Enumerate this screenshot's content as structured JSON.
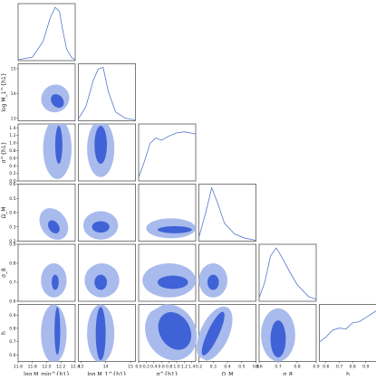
{
  "chart_data": {
    "type": "corner",
    "params": [
      {
        "key": "logMmin",
        "label": "log M_min^{h1}",
        "range": [
          11.6,
          12.4
        ],
        "ticks": [
          "11.6",
          "11.8",
          "12.0",
          "12.2",
          "12.4"
        ]
      },
      {
        "key": "logM1",
        "label": "log M_1^{h1}",
        "range": [
          12.9,
          15.2
        ],
        "ticks": [
          "13",
          "14",
          "15"
        ]
      },
      {
        "key": "sigma",
        "label": "σ^{h1}",
        "range": [
          0.0,
          1.5
        ],
        "ticks": [
          "0.0",
          "0.2",
          "0.4",
          "0.6",
          "0.8",
          "1.0",
          "1.2",
          "1.4"
        ]
      },
      {
        "key": "Om",
        "label": "Ω_M",
        "range": [
          0.2,
          0.6
        ],
        "ticks": [
          "0.2",
          "0.3",
          "0.4",
          "0.5",
          "0.6"
        ]
      },
      {
        "key": "s8",
        "label": "σ_8",
        "range": [
          0.6,
          0.9
        ],
        "ticks": [
          "0.6",
          "0.7",
          "0.8",
          "0.9"
        ]
      },
      {
        "key": "h",
        "label": "h",
        "range": [
          0.55,
          0.98
        ],
        "ticks": [
          "0.6",
          "0.7",
          "0.8",
          "0.9"
        ]
      }
    ],
    "diagonal_1d": [
      {
        "x": [
          11.6,
          11.8,
          11.95,
          12.05,
          12.12,
          12.18,
          12.22,
          12.28,
          12.35,
          12.4
        ],
        "y": [
          0.0,
          0.05,
          0.35,
          0.8,
          1.0,
          0.92,
          0.6,
          0.2,
          0.04,
          0.0
        ]
      },
      {
        "x": [
          12.9,
          13.2,
          13.5,
          13.7,
          13.9,
          14.1,
          14.4,
          14.8,
          15.2
        ],
        "y": [
          0.02,
          0.25,
          0.75,
          0.97,
          1.0,
          0.55,
          0.15,
          0.03,
          0.0
        ]
      },
      {
        "x": [
          0.0,
          0.15,
          0.3,
          0.45,
          0.6,
          0.8,
          1.0,
          1.2,
          1.5
        ],
        "y": [
          0.05,
          0.35,
          0.7,
          0.8,
          0.76,
          0.84,
          0.9,
          0.92,
          0.88
        ]
      },
      {
        "x": [
          0.2,
          0.25,
          0.29,
          0.33,
          0.38,
          0.45,
          0.52,
          0.6
        ],
        "y": [
          0.05,
          0.55,
          1.0,
          0.72,
          0.32,
          0.12,
          0.04,
          0.0
        ]
      },
      {
        "x": [
          0.6,
          0.63,
          0.66,
          0.69,
          0.72,
          0.76,
          0.8,
          0.86,
          0.9
        ],
        "y": [
          0.05,
          0.35,
          0.85,
          1.0,
          0.82,
          0.55,
          0.3,
          0.07,
          0.02
        ]
      },
      {
        "x": [
          0.55,
          0.6,
          0.65,
          0.7,
          0.75,
          0.8,
          0.85,
          0.9,
          0.98
        ],
        "y": [
          0.35,
          0.45,
          0.58,
          0.62,
          0.6,
          0.72,
          0.74,
          0.82,
          0.95
        ]
      }
    ],
    "contours_2d": [
      {
        "row": 1,
        "col": 0,
        "inner": {
          "cx": 12.15,
          "cy": 13.7,
          "sx": 0.08,
          "sy": 0.3,
          "rot": -40
        },
        "outer": {
          "cx": 12.12,
          "cy": 13.8,
          "sx": 0.2,
          "sy": 0.55,
          "rot": -40
        }
      },
      {
        "row": 2,
        "col": 0,
        "inner": {
          "cx": 12.17,
          "cy": 0.95,
          "sx": 0.05,
          "sy": 0.5,
          "rot": 0
        },
        "outer": {
          "cx": 12.15,
          "cy": 0.85,
          "sx": 0.2,
          "sy": 0.8,
          "rot": 0
        }
      },
      {
        "row": 2,
        "col": 1,
        "inner": {
          "cx": 13.8,
          "cy": 0.95,
          "sx": 0.25,
          "sy": 0.5,
          "rot": 0
        },
        "outer": {
          "cx": 13.8,
          "cy": 0.85,
          "sx": 0.55,
          "sy": 0.75,
          "rot": 0
        }
      },
      {
        "row": 3,
        "col": 0,
        "inner": {
          "cx": 12.1,
          "cy": 0.3,
          "sx": 0.07,
          "sy": 0.05,
          "rot": -35
        },
        "outer": {
          "cx": 12.1,
          "cy": 0.32,
          "sx": 0.18,
          "sy": 0.12,
          "rot": -35
        }
      },
      {
        "row": 3,
        "col": 1,
        "inner": {
          "cx": 13.8,
          "cy": 0.3,
          "sx": 0.35,
          "sy": 0.04,
          "rot": 0
        },
        "outer": {
          "cx": 13.8,
          "cy": 0.31,
          "sx": 0.7,
          "sy": 0.1,
          "rot": 0
        }
      },
      {
        "row": 3,
        "col": 2,
        "inner": {
          "cx": 0.95,
          "cy": 0.28,
          "sx": 0.45,
          "sy": 0.025,
          "rot": 0
        },
        "outer": {
          "cx": 0.85,
          "cy": 0.29,
          "sx": 0.65,
          "sy": 0.07,
          "rot": 0
        }
      },
      {
        "row": 4,
        "col": 0,
        "inner": {
          "cx": 12.12,
          "cy": 0.7,
          "sx": 0.05,
          "sy": 0.04,
          "rot": 0
        },
        "outer": {
          "cx": 12.1,
          "cy": 0.71,
          "sx": 0.18,
          "sy": 0.09,
          "rot": 0
        }
      },
      {
        "row": 4,
        "col": 1,
        "inner": {
          "cx": 13.8,
          "cy": 0.7,
          "sx": 0.25,
          "sy": 0.04,
          "rot": 0
        },
        "outer": {
          "cx": 13.85,
          "cy": 0.71,
          "sx": 0.7,
          "sy": 0.09,
          "rot": 0
        }
      },
      {
        "row": 4,
        "col": 2,
        "inner": {
          "cx": 0.9,
          "cy": 0.7,
          "sx": 0.4,
          "sy": 0.035,
          "rot": 0
        },
        "outer": {
          "cx": 0.8,
          "cy": 0.71,
          "sx": 0.7,
          "sy": 0.09,
          "rot": 0
        }
      },
      {
        "row": 4,
        "col": 3,
        "inner": {
          "cx": 0.3,
          "cy": 0.7,
          "sx": 0.04,
          "sy": 0.04,
          "rot": 0
        },
        "outer": {
          "cx": 0.3,
          "cy": 0.71,
          "sx": 0.1,
          "sy": 0.09,
          "rot": 0
        }
      },
      {
        "row": 5,
        "col": 0,
        "inner": {
          "cx": 12.15,
          "cy": 0.78,
          "sx": 0.04,
          "sy": 0.18,
          "rot": 0
        },
        "outer": {
          "cx": 12.1,
          "cy": 0.76,
          "sx": 0.18,
          "sy": 0.22,
          "rot": 0
        }
      },
      {
        "row": 5,
        "col": 1,
        "inner": {
          "cx": 13.8,
          "cy": 0.76,
          "sx": 0.2,
          "sy": 0.2,
          "rot": 0
        },
        "outer": {
          "cx": 13.8,
          "cy": 0.76,
          "sx": 0.55,
          "sy": 0.22,
          "rot": 0
        }
      },
      {
        "row": 5,
        "col": 2,
        "inner": {
          "cx": 0.95,
          "cy": 0.78,
          "sx": 0.4,
          "sy": 0.15,
          "rot": -30
        },
        "outer": {
          "cx": 0.85,
          "cy": 0.77,
          "sx": 0.65,
          "sy": 0.22,
          "rot": -30
        }
      },
      {
        "row": 5,
        "col": 3,
        "inner": {
          "cx": 0.3,
          "cy": 0.76,
          "sx": 0.04,
          "sy": 0.18,
          "rot": 25
        },
        "outer": {
          "cx": 0.31,
          "cy": 0.76,
          "sx": 0.1,
          "sy": 0.22,
          "rot": 25
        }
      },
      {
        "row": 5,
        "col": 4,
        "inner": {
          "cx": 0.7,
          "cy": 0.72,
          "sx": 0.04,
          "sy": 0.14,
          "rot": 0
        },
        "outer": {
          "cx": 0.7,
          "cy": 0.75,
          "sx": 0.09,
          "sy": 0.2,
          "rot": 0
        }
      }
    ],
    "colors": {
      "inner": "#3f62d6",
      "outer": "#a9bbec",
      "line": "#5577cc",
      "axis": "#222222"
    },
    "grid": false
  }
}
